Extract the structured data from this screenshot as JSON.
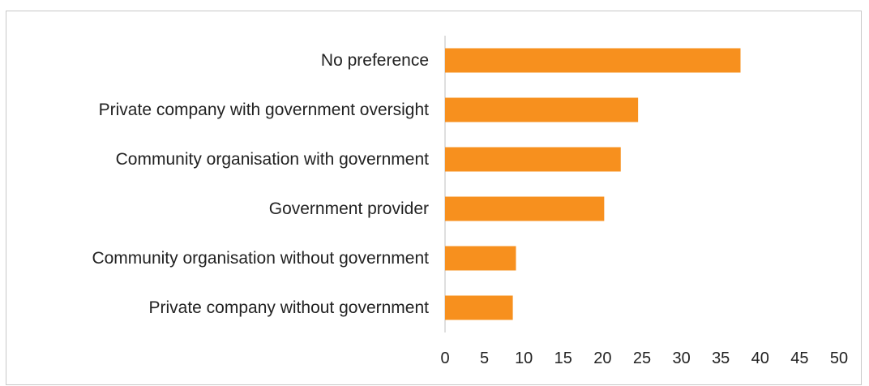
{
  "chart_data": {
    "type": "bar",
    "orientation": "horizontal",
    "categories": [
      "No preference",
      "Private company with government oversight",
      "Community organisation with government",
      "Government provider",
      "Community organisation without government",
      "Private company without government"
    ],
    "values": [
      37.5,
      24.5,
      22.3,
      20.2,
      9.0,
      8.6
    ],
    "xlim": [
      0,
      50
    ],
    "xticks": [
      "0",
      "5",
      "10",
      "15",
      "20",
      "25",
      "30",
      "35",
      "40",
      "45",
      "50"
    ],
    "bar_color": "#f7901e",
    "axis_color": "#bfbfbf",
    "grid": false,
    "legend": "none",
    "title": "",
    "xlabel": "",
    "ylabel": ""
  }
}
